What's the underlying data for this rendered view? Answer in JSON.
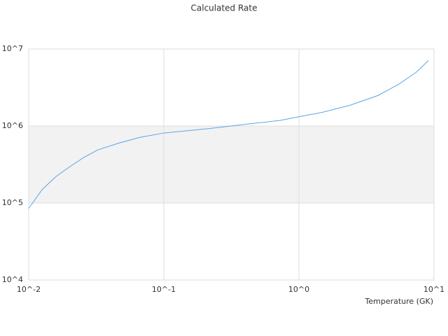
{
  "chart_data": {
    "type": "line",
    "title": "Calculated Rate",
    "x_label": "Temperature (GK)",
    "x": [
      0.01,
      0.0126,
      0.0159,
      0.0202,
      0.0256,
      0.0325,
      0.0466,
      0.066,
      0.1,
      0.22,
      0.4,
      0.72,
      1.0,
      1.48,
      2.39,
      3.87,
      5.5,
      7.4,
      9.1
    ],
    "values": [
      85000,
      150000,
      220000,
      297000,
      390000,
      490000,
      600000,
      710000,
      810000,
      930000,
      1050000,
      1180000,
      1320000,
      1500000,
      1860000,
      2500000,
      3500000,
      5000000,
      7100000
    ],
    "color": "#5aa5e6",
    "xlog": true,
    "ylog": true,
    "xlim": [
      0.01,
      10
    ],
    "ylim": [
      10000,
      10000000
    ],
    "xticks": [
      {
        "value": 0.01,
        "label": "10^-2"
      },
      {
        "value": 0.1,
        "label": "10^-1"
      },
      {
        "value": 1,
        "label": "10^0"
      },
      {
        "value": 10,
        "label": "10^1"
      }
    ],
    "yticks": [
      {
        "value": 10000,
        "label": "10^4"
      },
      {
        "value": 100000,
        "label": "10^5"
      },
      {
        "value": 1000000,
        "label": "10^6"
      },
      {
        "value": 10000000,
        "label": "10^7"
      }
    ],
    "grid": true,
    "band_color": "#f2f2f2"
  }
}
